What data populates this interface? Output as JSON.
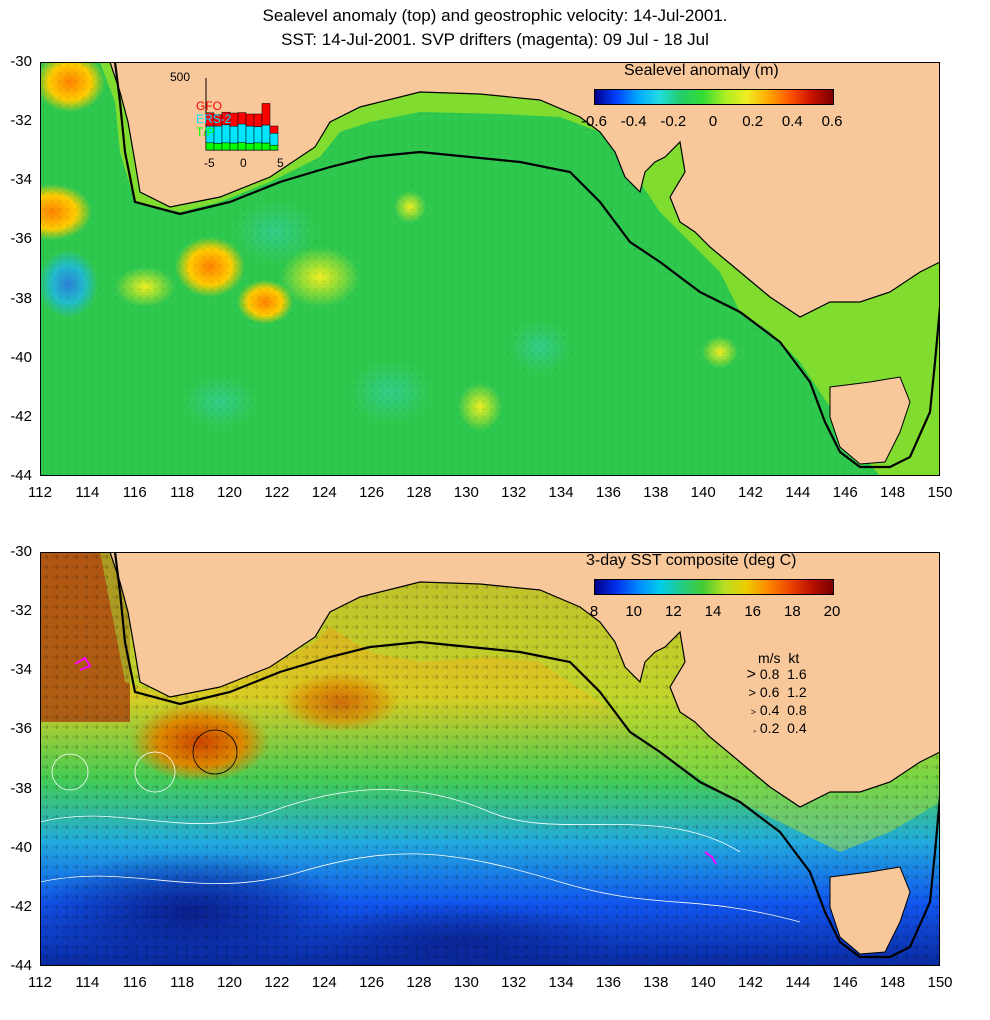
{
  "titles": {
    "line1": "Sealevel anomaly (top) and geostrophic velocity: 14-Jul-2001.",
    "line2": "SST: 14-Jul-2001. SVP drifters (magenta): 09 Jul - 18 Jul"
  },
  "colors": {
    "land": "#f9c89a",
    "coast": "#000000",
    "slope_line": "#000000",
    "drifters": "#ff00ff"
  },
  "lat_ticks": [
    "-30",
    "-32",
    "-34",
    "-36",
    "-38",
    "-40",
    "-42",
    "-44"
  ],
  "lon_ticks": [
    "112",
    "114",
    "116",
    "118",
    "120",
    "122",
    "124",
    "126",
    "128",
    "130",
    "132",
    "134",
    "136",
    "138",
    "140",
    "142",
    "144",
    "146",
    "148",
    "150"
  ],
  "top_panel": {
    "colorbar_title": "Sealevel anomaly (m)",
    "colorbar_ticks": [
      "-0.6",
      "-0.4",
      "-0.2",
      "0",
      "0.2",
      "0.4",
      "0.6"
    ],
    "inset": {
      "ymax_label": "500",
      "series": [
        "GFO",
        "ERS-2",
        "T/P"
      ],
      "series_colors": [
        "#ff0000",
        "#00e5ff",
        "#00ff00"
      ],
      "x_ticks": [
        "-5",
        "0",
        "5"
      ],
      "bars": [
        {
          "tp": 60,
          "ers": 140,
          "gfo": 110
        },
        {
          "tp": 55,
          "ers": 145,
          "gfo": 95
        },
        {
          "tp": 60,
          "ers": 150,
          "gfo": 105
        },
        {
          "tp": 58,
          "ers": 140,
          "gfo": 110
        },
        {
          "tp": 62,
          "ers": 155,
          "gfo": 95
        },
        {
          "tp": 55,
          "ers": 145,
          "gfo": 100
        },
        {
          "tp": 60,
          "ers": 135,
          "gfo": 105
        },
        {
          "tp": 58,
          "ers": 150,
          "gfo": 180
        },
        {
          "tp": 40,
          "ers": 100,
          "gfo": 60
        }
      ]
    }
  },
  "bottom_panel": {
    "colorbar_title": "3-day SST composite (deg C)",
    "colorbar_ticks": [
      "8",
      "10",
      "12",
      "14",
      "16",
      "18",
      "20"
    ],
    "velocity_legend": {
      "header": "m/s  kt",
      "rows": [
        {
          "ms": "0.8",
          "kt": "1.6"
        },
        {
          "ms": "0.6",
          "kt": "1.2"
        },
        {
          "ms": "0.4",
          "kt": "0.8"
        },
        {
          "ms": "0.2",
          "kt": "0.4"
        }
      ]
    }
  }
}
